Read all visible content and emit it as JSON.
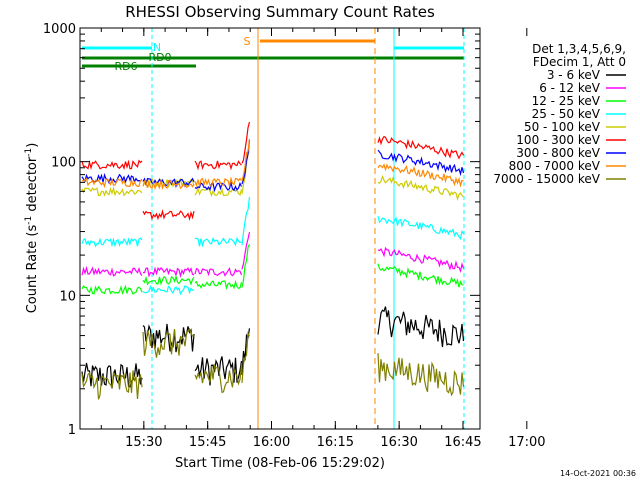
{
  "chart_data": {
    "type": "line",
    "title": "RHESSI Observing Summary Count Rates",
    "xlabel": "Start Time (08-Feb-06 15:29:02)",
    "ylabel_main": "Count Rate (s",
    "ylabel_sup1": "-1",
    "ylabel_mid": " detector",
    "ylabel_sup2": "-1",
    "ylabel_end": ")",
    "y_scale": "log",
    "ylim": [
      1,
      1000
    ],
    "xlim_minutes": [
      15.0,
      109.0
    ],
    "x_ticks": [
      {
        "minute": 30,
        "label": "15:30"
      },
      {
        "minute": 45,
        "label": "15:45"
      },
      {
        "minute": 60,
        "label": "16:00"
      },
      {
        "minute": 75,
        "label": "16:15"
      },
      {
        "minute": 90,
        "label": "16:30"
      },
      {
        "minute": 105,
        "label": "16:45"
      },
      {
        "minute": 120,
        "label": "17:00"
      }
    ],
    "y_ticks": [
      {
        "value": 1,
        "label": "1"
      },
      {
        "value": 10,
        "label": "10"
      },
      {
        "value": 100,
        "label": "100"
      },
      {
        "value": 1000,
        "label": "1000"
      }
    ],
    "legend_header": [
      "Det 1,3,4,5,6,9,",
      "FDecim 1, Att 0"
    ],
    "legend_position": "right",
    "series": [
      {
        "name": "3 - 6 keV",
        "color": "#000000",
        "levels": [
          2.5,
          5,
          2.8,
          5
        ]
      },
      {
        "name": "6 - 12 keV",
        "color": "#ff00ff",
        "levels": [
          15,
          15,
          15,
          16
        ]
      },
      {
        "name": "12 - 25 keV",
        "color": "#00ff00",
        "levels": [
          11,
          13,
          12,
          12
        ]
      },
      {
        "name": "25 - 50 keV",
        "color": "#00ffff",
        "levels": [
          25,
          11,
          25,
          28
        ]
      },
      {
        "name": "50 - 100 keV",
        "color": "#cccc00",
        "levels": [
          60,
          70,
          60,
          55
        ]
      },
      {
        "name": "100 - 300 keV",
        "color": "#ff0000",
        "levels": [
          95,
          40,
          95,
          110
        ]
      },
      {
        "name": "300 - 800 keV",
        "color": "#0000ff",
        "levels": [
          75,
          70,
          65,
          85
        ]
      },
      {
        "name": "800 - 7000 keV",
        "color": "#ff8800",
        "levels": [
          70,
          68,
          70,
          70
        ]
      },
      {
        "name": "7000 - 15000 keV",
        "color": "#808000",
        "levels": [
          2.2,
          4.5,
          2.5,
          2.2
        ]
      }
    ],
    "flag_bars": [
      {
        "label": "N",
        "color": "#00ffff"
      },
      {
        "label": "RD0",
        "color": "#008000"
      },
      {
        "label": "RD6",
        "color": "#008000"
      },
      {
        "label": "S",
        "color": "#ff8800"
      }
    ],
    "footer_date": "14-Oct-2021 00:36"
  }
}
